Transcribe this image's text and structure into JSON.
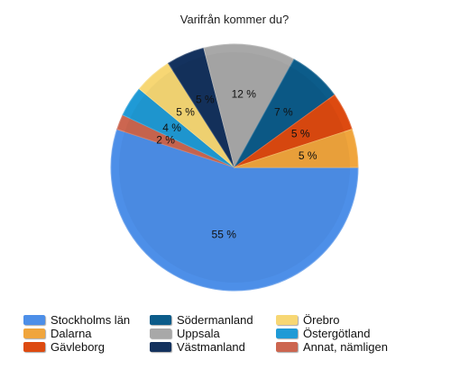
{
  "chart_data": {
    "type": "pie",
    "title": "Varifrån kommer du?",
    "slices": [
      {
        "name": "Stockholms län",
        "value": 55,
        "label": "55 %",
        "color": "#4d8fe8"
      },
      {
        "name": "Annat, nämligen",
        "value": 2,
        "label": "2 %",
        "color": "#cc6650"
      },
      {
        "name": "Östergötland",
        "value": 4,
        "label": "4 %",
        "color": "#1f9ad6"
      },
      {
        "name": "Örebro",
        "value": 5,
        "label": "5 %",
        "color": "#f7d774"
      },
      {
        "name": "Västmanland",
        "value": 5,
        "label": "5 %",
        "color": "#14325e"
      },
      {
        "name": "Uppsala",
        "value": 12,
        "label": "12 %",
        "color": "#a8a8a8"
      },
      {
        "name": "Södermanland",
        "value": 7,
        "label": "7 %",
        "color": "#0c5c8a"
      },
      {
        "name": "Gävleborg",
        "value": 5,
        "label": "5 %",
        "color": "#dd4a10"
      },
      {
        "name": "Dalarna",
        "value": 5,
        "label": "5 %",
        "color": "#f0a53c"
      }
    ],
    "legend": {
      "placement": "bottom",
      "items": [
        {
          "name": "Stockholms län",
          "color": "#4d8fe8"
        },
        {
          "name": "Södermanland",
          "color": "#0c5c8a"
        },
        {
          "name": "Örebro",
          "color": "#f7d774"
        },
        {
          "name": "Dalarna",
          "color": "#f0a53c"
        },
        {
          "name": "Uppsala",
          "color": "#a8a8a8"
        },
        {
          "name": "Östergötland",
          "color": "#1f9ad6"
        },
        {
          "name": "Gävleborg",
          "color": "#dd4a10"
        },
        {
          "name": "Västmanland",
          "color": "#14325e"
        },
        {
          "name": "Annat, nämligen",
          "color": "#cc6650"
        }
      ]
    }
  }
}
